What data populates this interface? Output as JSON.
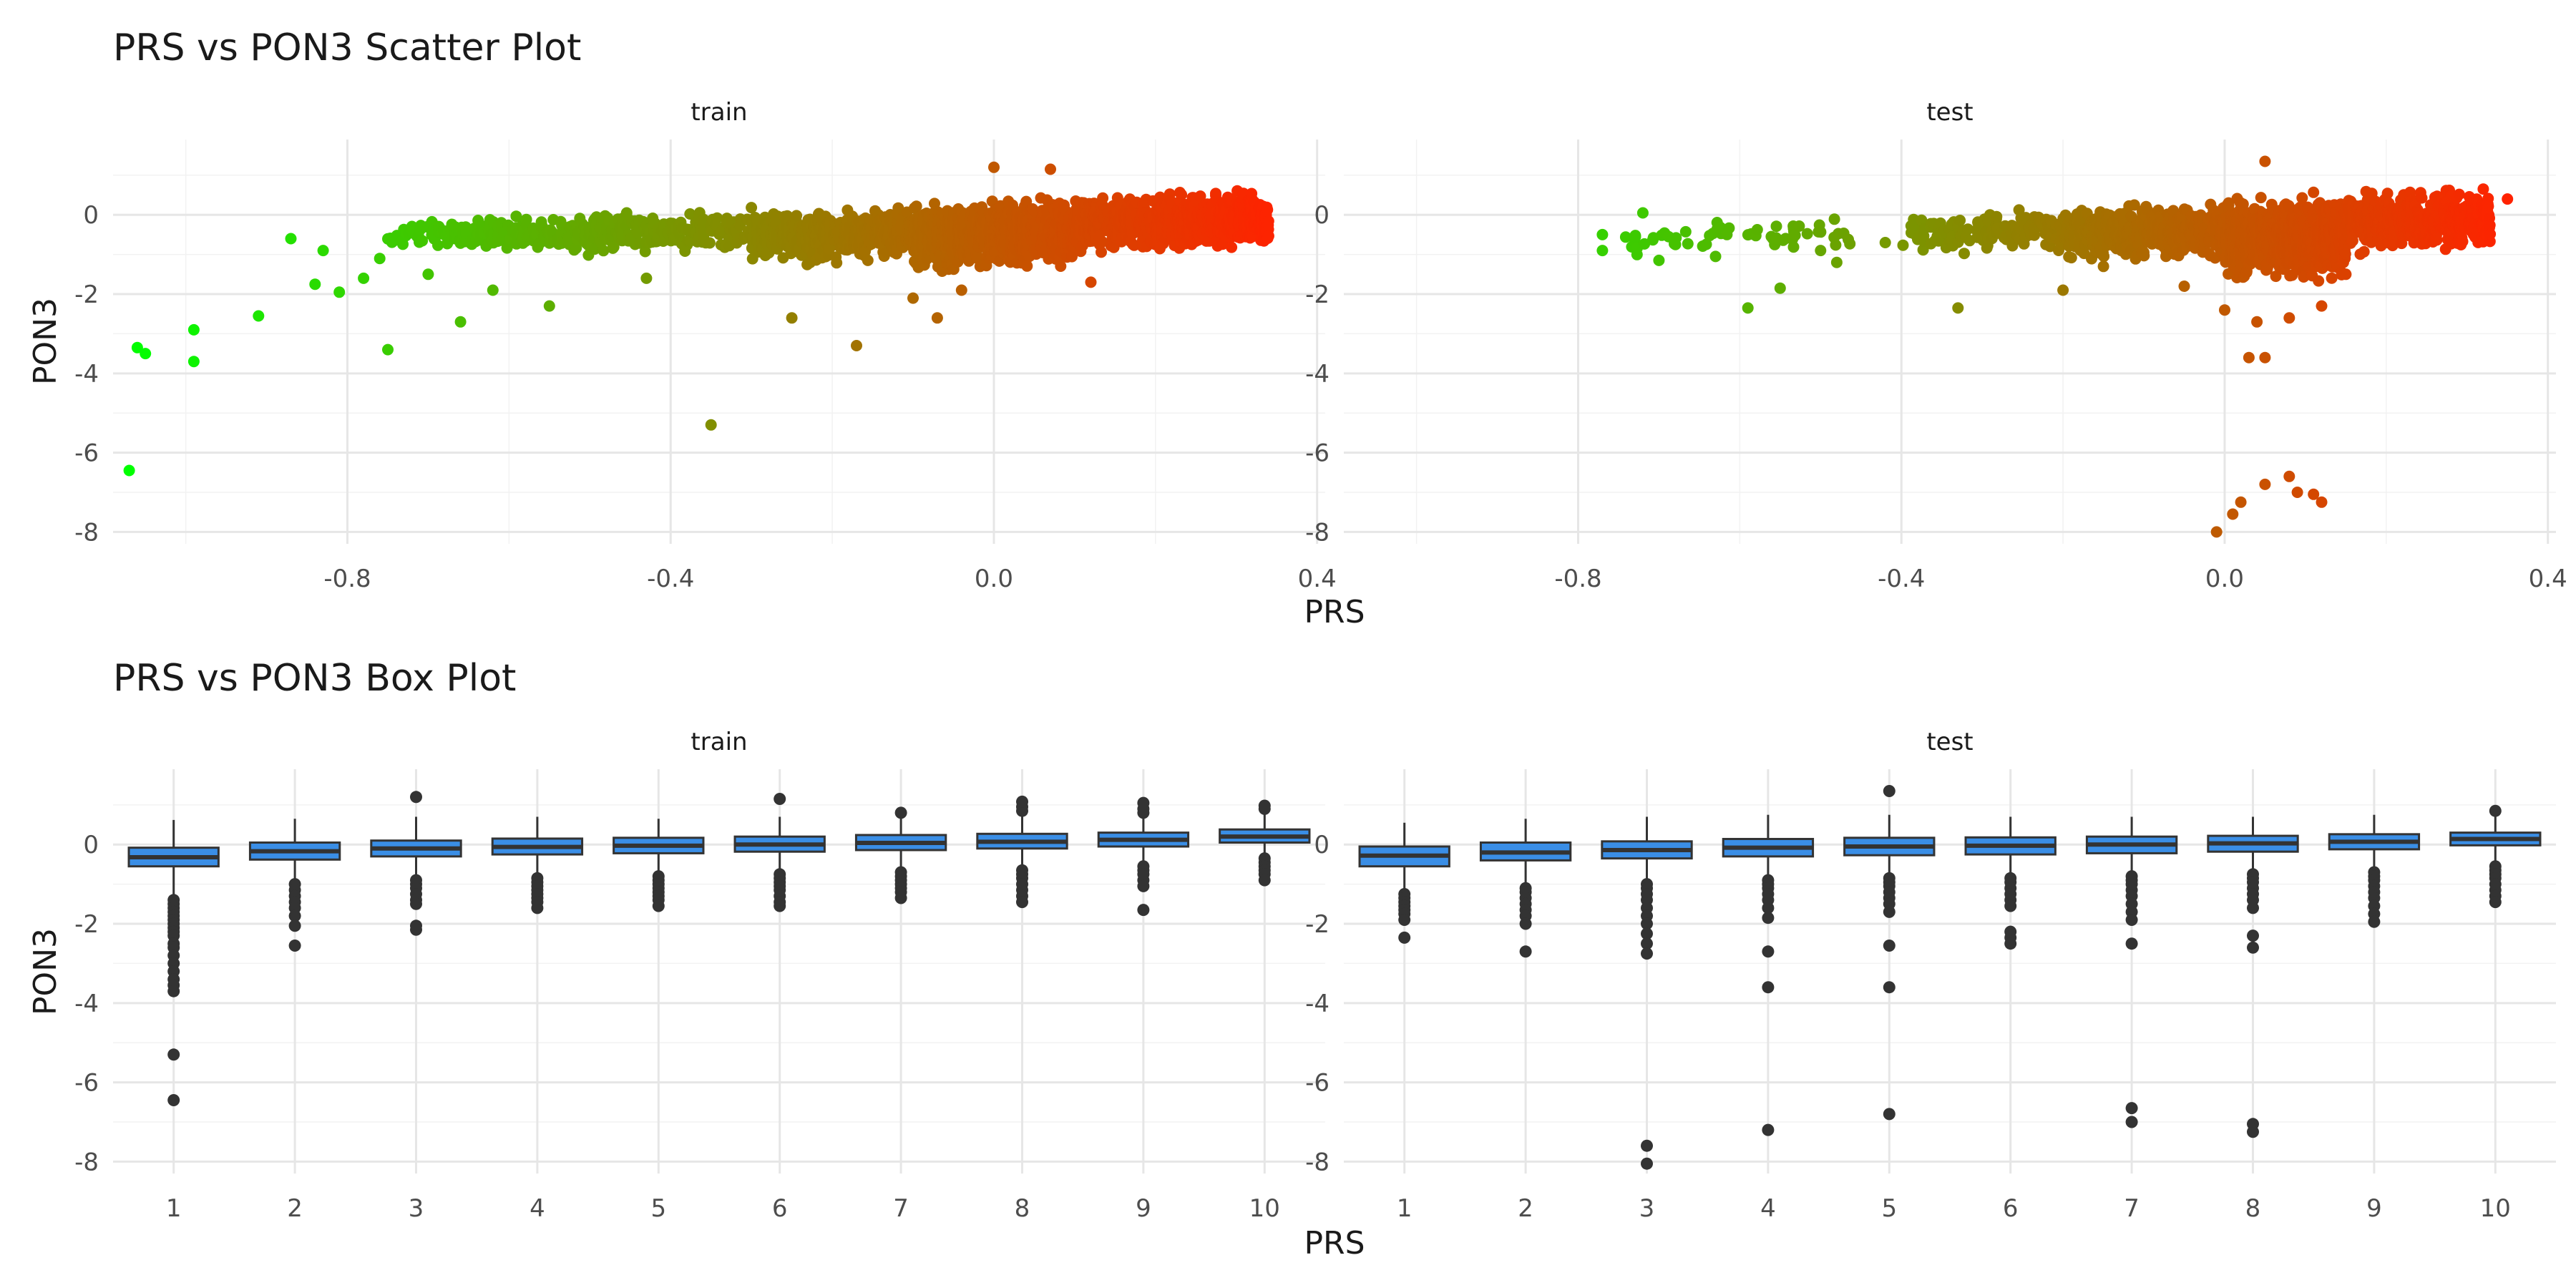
{
  "chart_data": [
    {
      "type": "scatter",
      "title": "PRS vs PON3 Scatter Plot",
      "xlabel": "PRS",
      "ylabel": "PON3",
      "xlim": [
        -1.09,
        0.41
      ],
      "ylim": [
        -8.3,
        1.9
      ],
      "x_ticks": [
        -0.8,
        -0.4,
        0.0,
        0.4
      ],
      "x_tick_labels": [
        "-0.8",
        "-0.4",
        "0.0",
        "0.4"
      ],
      "y_ticks": [
        -8,
        -6,
        -4,
        -2,
        0
      ],
      "y_tick_labels": [
        "-8",
        "-6",
        "-4",
        "-2",
        "0"
      ],
      "grid": true,
      "color_scale": {
        "low": "#00ff00",
        "high": "#ff2200",
        "mapped_to": "PRS",
        "range": [
          -1.07,
          0.35
        ]
      },
      "facets": [
        {
          "label": "train",
          "points": [
            [
              -1.07,
              -6.45
            ],
            [
              -1.06,
              -3.35
            ],
            [
              -1.05,
              -3.5
            ],
            [
              -0.99,
              -2.9
            ],
            [
              -0.99,
              -3.7
            ],
            [
              -0.91,
              -2.55
            ],
            [
              -0.87,
              -0.6
            ],
            [
              -0.84,
              -1.75
            ],
            [
              -0.83,
              -0.9
            ],
            [
              -0.81,
              -1.95
            ],
            [
              -0.78,
              -1.6
            ],
            [
              -0.76,
              -1.1
            ],
            [
              -0.75,
              -3.4
            ],
            [
              -0.72,
              -0.4
            ],
            [
              -0.7,
              -1.5
            ],
            [
              -0.66,
              -2.7
            ],
            [
              -0.62,
              -1.9
            ],
            [
              -0.55,
              -2.3
            ],
            [
              -0.43,
              -1.6
            ],
            [
              -0.35,
              -5.3
            ],
            [
              -0.25,
              -2.6
            ],
            [
              -0.17,
              -3.3
            ],
            [
              -0.07,
              -2.6
            ],
            [
              0.0,
              1.2
            ],
            [
              0.07,
              1.15
            ],
            [
              0.12,
              -1.7
            ],
            [
              -0.1,
              -2.1
            ],
            [
              -0.04,
              -1.9
            ]
          ],
          "cloud": [
            {
              "x": [
                -0.75,
                -0.55
              ],
              "y": [
                -1.0,
                0.0
              ],
              "n": 150
            },
            {
              "x": [
                -0.55,
                -0.3
              ],
              "y": [
                -1.1,
                0.2
              ],
              "n": 260
            },
            {
              "x": [
                -0.3,
                -0.1
              ],
              "y": [
                -1.3,
                0.3
              ],
              "n": 500
            },
            {
              "x": [
                -0.1,
                0.1
              ],
              "y": [
                -1.5,
                0.5
              ],
              "n": 900
            },
            {
              "x": [
                0.1,
                0.34
              ],
              "y": [
                -1.0,
                0.65
              ],
              "n": 900
            }
          ]
        },
        {
          "label": "test",
          "points": [
            [
              -0.77,
              -0.9
            ],
            [
              -0.77,
              -0.5
            ],
            [
              -0.72,
              0.05
            ],
            [
              -0.7,
              -1.15
            ],
            [
              -0.63,
              -1.05
            ],
            [
              -0.59,
              -2.35
            ],
            [
              -0.55,
              -1.85
            ],
            [
              -0.5,
              -0.9
            ],
            [
              -0.48,
              -1.2
            ],
            [
              -0.42,
              -0.7
            ],
            [
              -0.33,
              -2.35
            ],
            [
              -0.2,
              -1.9
            ],
            [
              -0.15,
              -1.3
            ],
            [
              -0.05,
              -1.8
            ],
            [
              0.0,
              -2.4
            ],
            [
              0.04,
              -2.7
            ],
            [
              0.03,
              -3.6
            ],
            [
              0.05,
              -3.6
            ],
            [
              0.08,
              -2.6
            ],
            [
              0.12,
              -2.3
            ],
            [
              0.15,
              -1.5
            ],
            [
              0.05,
              1.35
            ],
            [
              0.32,
              0.65
            ],
            [
              0.35,
              0.4
            ],
            [
              -0.01,
              -8.0
            ],
            [
              0.01,
              -7.55
            ],
            [
              0.02,
              -7.25
            ],
            [
              0.05,
              -6.8
            ],
            [
              0.08,
              -6.6
            ],
            [
              0.09,
              -7.0
            ],
            [
              0.11,
              -7.05
            ],
            [
              0.12,
              -7.25
            ]
          ],
          "cloud": [
            {
              "x": [
                -0.75,
                -0.45
              ],
              "y": [
                -1.0,
                0.0
              ],
              "n": 60
            },
            {
              "x": [
                -0.4,
                -0.2
              ],
              "y": [
                -1.1,
                0.2
              ],
              "n": 150
            },
            {
              "x": [
                -0.2,
                0.0
              ],
              "y": [
                -1.3,
                0.4
              ],
              "n": 500
            },
            {
              "x": [
                0.0,
                0.15
              ],
              "y": [
                -1.8,
                0.6
              ],
              "n": 800
            },
            {
              "x": [
                0.15,
                0.33
              ],
              "y": [
                -1.0,
                0.75
              ],
              "n": 500
            }
          ]
        }
      ]
    },
    {
      "type": "box",
      "title": "PRS vs PON3 Box Plot",
      "xlabel": "PRS",
      "ylabel": "PON3",
      "categories": [
        "1",
        "2",
        "3",
        "4",
        "5",
        "6",
        "7",
        "8",
        "9",
        "10"
      ],
      "ylim": [
        -8.3,
        1.9
      ],
      "y_ticks": [
        -8,
        -6,
        -4,
        -2,
        0
      ],
      "y_tick_labels": [
        "-8",
        "-6",
        "-4",
        "-2",
        "0"
      ],
      "grid": true,
      "box_color": "#3a8ee6",
      "outlier_color": "#333333",
      "facets": [
        {
          "label": "train",
          "boxes": [
            {
              "q1": -0.55,
              "median": -0.32,
              "q3": -0.08,
              "lower": -1.25,
              "upper": 0.62,
              "outliers": [
                -1.4,
                -1.5,
                -1.6,
                -1.7,
                -1.8,
                -1.9,
                -2.0,
                -2.1,
                -2.2,
                -2.3,
                -2.5,
                -2.6,
                -2.8,
                -3.0,
                -3.2,
                -3.4,
                -3.55,
                -3.7,
                -5.3,
                -6.45
              ]
            },
            {
              "q1": -0.38,
              "median": -0.17,
              "q3": 0.05,
              "lower": -0.9,
              "upper": 0.65,
              "outliers": [
                -1.0,
                -1.15,
                -1.3,
                -1.45,
                -1.6,
                -1.8,
                -2.05,
                -2.55
              ]
            },
            {
              "q1": -0.3,
              "median": -0.1,
              "q3": 0.1,
              "lower": -0.85,
              "upper": 0.7,
              "outliers": [
                -0.9,
                -1.0,
                -1.1,
                -1.25,
                -1.4,
                -1.5,
                -2.05,
                -2.15,
                1.2
              ]
            },
            {
              "q1": -0.25,
              "median": -0.06,
              "q3": 0.15,
              "lower": -0.8,
              "upper": 0.7,
              "outliers": [
                -0.85,
                -0.95,
                -1.05,
                -1.15,
                -1.25,
                -1.35,
                -1.45,
                -1.6
              ]
            },
            {
              "q1": -0.22,
              "median": -0.03,
              "q3": 0.17,
              "lower": -0.75,
              "upper": 0.65,
              "outliers": [
                -0.8,
                -0.9,
                -1.0,
                -1.1,
                -1.2,
                -1.3,
                -1.4,
                -1.55
              ]
            },
            {
              "q1": -0.18,
              "median": 0.0,
              "q3": 0.2,
              "lower": -0.7,
              "upper": 0.7,
              "outliers": [
                -0.75,
                -0.85,
                -0.95,
                -1.05,
                -1.15,
                -1.3,
                -1.45,
                -1.55,
                1.15
              ]
            },
            {
              "q1": -0.14,
              "median": 0.04,
              "q3": 0.24,
              "lower": -0.65,
              "upper": 0.7,
              "outliers": [
                -0.7,
                -0.8,
                -0.9,
                -1.0,
                -1.1,
                -1.2,
                -1.35,
                0.8
              ]
            },
            {
              "q1": -0.1,
              "median": 0.07,
              "q3": 0.27,
              "lower": -0.6,
              "upper": 0.75,
              "outliers": [
                -0.65,
                -0.75,
                -0.85,
                -1.0,
                -1.15,
                -1.3,
                -1.45,
                0.85,
                0.95,
                1.08
              ]
            },
            {
              "q1": -0.05,
              "median": 0.12,
              "q3": 0.3,
              "lower": -0.5,
              "upper": 0.75,
              "outliers": [
                -0.55,
                -0.65,
                -0.75,
                -0.9,
                -1.05,
                -1.65,
                0.8,
                0.9,
                1.05
              ]
            },
            {
              "q1": 0.05,
              "median": 0.2,
              "q3": 0.38,
              "lower": -0.3,
              "upper": 0.85,
              "outliers": [
                -0.35,
                -0.45,
                -0.55,
                -0.65,
                -0.75,
                -0.9,
                0.9,
                0.98
              ]
            }
          ]
        },
        {
          "label": "test",
          "boxes": [
            {
              "q1": -0.55,
              "median": -0.28,
              "q3": -0.05,
              "lower": -1.2,
              "upper": 0.55,
              "outliers": [
                -1.25,
                -1.35,
                -1.45,
                -1.55,
                -1.65,
                -1.75,
                -1.9,
                -2.35
              ]
            },
            {
              "q1": -0.4,
              "median": -0.2,
              "q3": 0.05,
              "lower": -1.05,
              "upper": 0.65,
              "outliers": [
                -1.1,
                -1.2,
                -1.35,
                -1.5,
                -1.65,
                -1.8,
                -2.0,
                -2.7
              ]
            },
            {
              "q1": -0.35,
              "median": -0.14,
              "q3": 0.08,
              "lower": -0.95,
              "upper": 0.7,
              "outliers": [
                -1.0,
                -1.1,
                -1.25,
                -1.4,
                -1.6,
                -1.8,
                -2.0,
                -2.25,
                -2.5,
                -2.75,
                -7.6,
                -8.05
              ]
            },
            {
              "q1": -0.3,
              "median": -0.08,
              "q3": 0.14,
              "lower": -0.85,
              "upper": 0.75,
              "outliers": [
                -0.9,
                -1.0,
                -1.1,
                -1.25,
                -1.4,
                -1.6,
                -1.85,
                -2.7,
                -3.6,
                -7.2
              ]
            },
            {
              "q1": -0.27,
              "median": -0.05,
              "q3": 0.17,
              "lower": -0.8,
              "upper": 0.75,
              "outliers": [
                -0.85,
                -0.95,
                -1.05,
                -1.2,
                -1.35,
                -1.5,
                -1.7,
                -2.55,
                -3.6,
                -6.8,
                1.35
              ]
            },
            {
              "q1": -0.25,
              "median": -0.03,
              "q3": 0.18,
              "lower": -0.8,
              "upper": 0.7,
              "outliers": [
                -0.85,
                -0.95,
                -1.1,
                -1.25,
                -1.4,
                -1.55,
                -2.2,
                -2.35,
                -2.5
              ]
            },
            {
              "q1": -0.22,
              "median": 0.0,
              "q3": 0.2,
              "lower": -0.75,
              "upper": 0.7,
              "outliers": [
                -0.8,
                -0.9,
                -1.0,
                -1.15,
                -1.3,
                -1.5,
                -1.7,
                -1.9,
                -2.5,
                -6.65,
                -7.0
              ]
            },
            {
              "q1": -0.18,
              "median": 0.03,
              "q3": 0.22,
              "lower": -0.7,
              "upper": 0.7,
              "outliers": [
                -0.75,
                -0.85,
                -0.95,
                -1.1,
                -1.25,
                -1.4,
                -1.6,
                -2.3,
                -2.6,
                -7.05,
                -7.25
              ]
            },
            {
              "q1": -0.12,
              "median": 0.07,
              "q3": 0.26,
              "lower": -0.6,
              "upper": 0.75,
              "outliers": [
                -0.7,
                -0.8,
                -0.9,
                -1.05,
                -1.2,
                -1.35,
                -1.55,
                -1.75,
                -1.95
              ]
            },
            {
              "q1": -0.02,
              "median": 0.14,
              "q3": 0.3,
              "lower": -0.5,
              "upper": 0.8,
              "outliers": [
                -0.55,
                -0.65,
                -0.75,
                -0.85,
                -1.0,
                -1.15,
                -1.3,
                -1.45,
                0.85
              ]
            }
          ]
        }
      ]
    }
  ]
}
